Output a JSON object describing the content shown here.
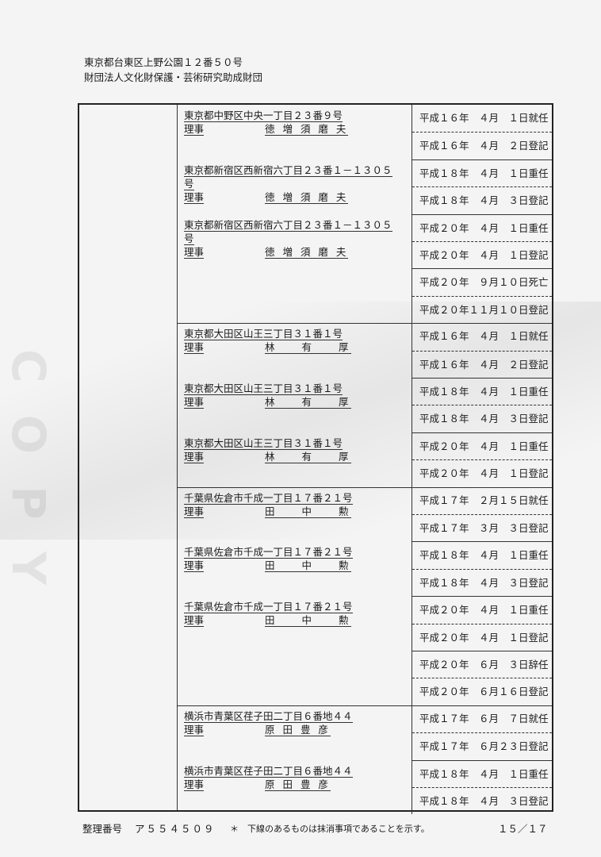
{
  "header": {
    "address": "東京都台東区上野公園１２番５０号",
    "organization": "財団法人文化財保護・芸術研究助成財団"
  },
  "watermark": "COPY",
  "sections": [
    {
      "entries": [
        {
          "address": "東京都中野区中央一丁目２３番９号",
          "title": "理事",
          "name": "徳 増 須 磨 夫"
        },
        {
          "address": "東京都新宿区西新宿六丁目２３番１－１３０５",
          "address_cont": "号",
          "title": "理事",
          "name": "徳 増 須 磨 夫"
        },
        {
          "address": "東京都新宿区西新宿六丁目２３番１－１３０５",
          "address_cont": "号",
          "title": "理事",
          "name": "徳 増 須 磨 夫"
        }
      ],
      "dates": [
        "平成１６年　４月　１日就任",
        "平成１６年　４月　２日登記",
        "平成１８年　４月　１日重任",
        "平成１８年　４月　３日登記",
        "平成２０年　４月　１日重任",
        "平成２０年　４月　１日登記",
        "平成２０年　９月１０日死亡",
        "平成２０年１１月１０日登記"
      ]
    },
    {
      "entries": [
        {
          "address": "東京都大田区山王三丁目３１番１号",
          "title": "理事",
          "name": "林　　有　　厚"
        },
        {
          "address": "東京都大田区山王三丁目３１番１号",
          "title": "理事",
          "name": "林　　有　　厚"
        },
        {
          "address": "東京都大田区山王三丁目３１番１号",
          "title": "理事",
          "name": "林　　有　　厚"
        }
      ],
      "dates": [
        "平成１６年　４月　１日就任",
        "平成１６年　４月　２日登記",
        "平成１８年　４月　１日重任",
        "平成１８年　４月　３日登記",
        "平成２０年　４月　１日重任",
        "平成２０年　４月　１日登記"
      ]
    },
    {
      "entries": [
        {
          "address": "千葉県佐倉市千成一丁目１７番２１号",
          "title": "理事",
          "name": "田　　中　　勲"
        },
        {
          "address": "千葉県佐倉市千成一丁目１７番２１号",
          "title": "理事",
          "name": "田　　中　　勲"
        },
        {
          "address": "千葉県佐倉市千成一丁目１７番２１号",
          "title": "理事",
          "name": "田　　中　　勲"
        }
      ],
      "dates": [
        "平成１７年　２月１５日就任",
        "平成１７年　３月　３日登記",
        "平成１８年　４月　１日重任",
        "平成１８年　４月　３日登記",
        "平成２０年　４月　１日重任",
        "平成２０年　４月　１日登記",
        "平成２０年　６月　３日辞任",
        "平成２０年　６月１６日登記"
      ]
    },
    {
      "entries": [
        {
          "address": "横浜市青葉区荏子田二丁目６番地４４",
          "title": "理事",
          "name": "原 田 豊 彦"
        },
        {
          "address": "横浜市青葉区荏子田二丁目６番地４４",
          "title": "理事",
          "name": "原 田 豊 彦"
        }
      ],
      "dates": [
        "平成１７年　６月　７日就任",
        "平成１７年　６月２３日登記",
        "平成１８年　４月　１日重任",
        "平成１８年　４月　３日登記"
      ]
    }
  ],
  "footer": {
    "ref_label": "整理番号",
    "ref_number": "ア５５４５０９",
    "note": "＊　下線のあるものは抹消事項であることを示す。",
    "page": "１５／１７"
  }
}
